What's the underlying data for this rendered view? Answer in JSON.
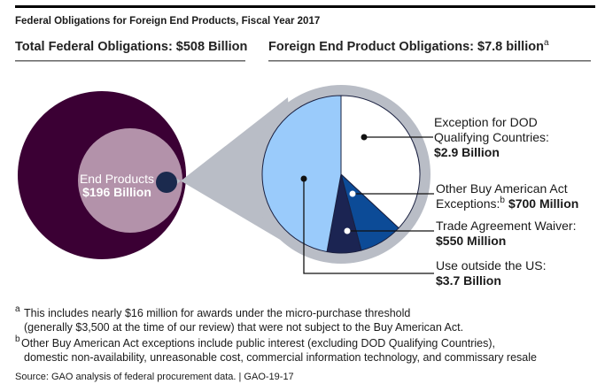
{
  "title": "Federal Obligations for Foreign End Products, Fiscal Year 2017",
  "left_header": "Total Federal Obligations: $508 Billion",
  "right_header": "Foreign End Product Obligations: $7.8 billion",
  "right_header_note": "a",
  "end_products": {
    "label": "End Products",
    "value": "$196 Billion"
  },
  "colors": {
    "total": "#3b0034",
    "end_products": "#b392aa",
    "foreign_dot": "#1b2a4e",
    "zoom_cone": "#b9bdc6",
    "dod": "#ffffff",
    "other_baa": "#0c4b97",
    "trade": "#1b2452",
    "outside_us": "#9acbfb"
  },
  "chart_data": {
    "type": "pie",
    "unit": "billion dollars",
    "slices": [
      {
        "name": "Exception for DOD Qualifying Countries",
        "value": 2.9,
        "color": "#ffffff"
      },
      {
        "name": "Other Buy American Act Exceptions",
        "value": 0.7,
        "color": "#0c4b97"
      },
      {
        "name": "Trade Agreement Waiver",
        "value": 0.55,
        "color": "#1b2452"
      },
      {
        "name": "Use outside the US",
        "value": 3.7,
        "color": "#9acbfb"
      }
    ]
  },
  "labels": {
    "dod": {
      "line1": "Exception for DOD",
      "line2": "Qualifying Countries:",
      "value": "$2.9 Billion"
    },
    "other": {
      "line1": "Other Buy American Act",
      "line2": "Exceptions:",
      "note": "b",
      "value": "$700 Million"
    },
    "trade": {
      "line1": "Trade Agreement Waiver:",
      "value": "$550 Million"
    },
    "outside": {
      "line1": "Use outside the US:",
      "value": "$3.7 Billion"
    }
  },
  "footnotes": {
    "a_mark": "a",
    "a_line1": "This includes nearly $16 million for awards under the micro-purchase threshold",
    "a_line2": "(generally $3,500 at the time of our review) that were not subject to the Buy American Act.",
    "b_mark": "b",
    "b_line1": "Other Buy American Act exceptions include public interest (excluding DOD Qualifying Countries),",
    "b_line2": "domestic non-availability, unreasonable cost, commercial information technology, and commissary resale"
  },
  "source": "Source: GAO analysis of federal procurement data. | GAO-19-17"
}
